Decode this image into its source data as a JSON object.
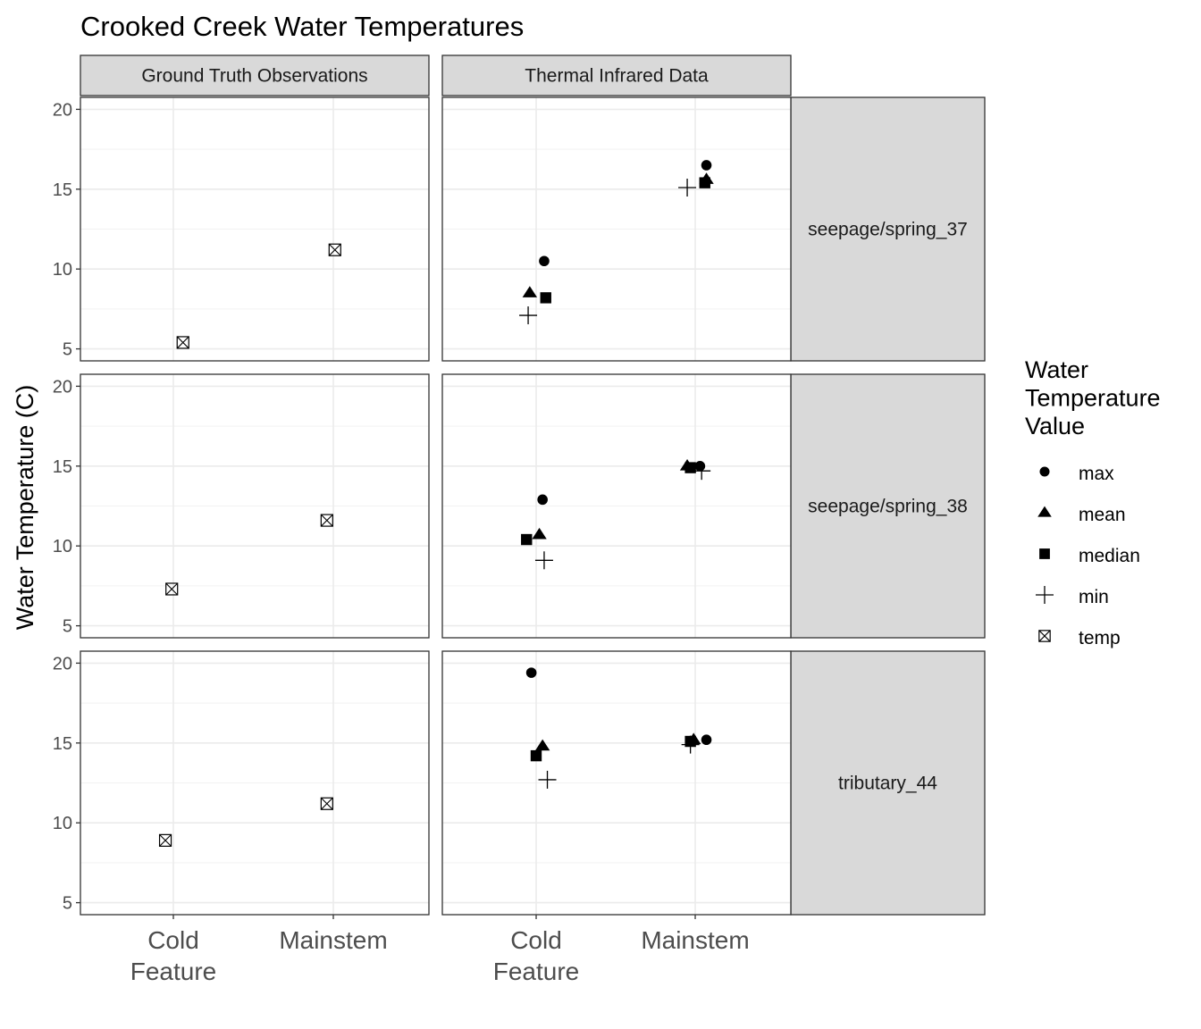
{
  "chart_data": {
    "type": "scatter",
    "title": "Crooked Creek Water Temperatures",
    "ylabel": "Water Temperature (C)",
    "xlabel": "",
    "categories": [
      "Cold\nFeature",
      "Mainstem"
    ],
    "ylim": [
      5,
      20
    ],
    "yticks": [
      5,
      10,
      15,
      20
    ],
    "grid": true,
    "legend": {
      "title": "Water\nTemperature\nValue",
      "position": "right",
      "entries": [
        {
          "key": "max",
          "label": "max",
          "shape": "circle"
        },
        {
          "key": "mean",
          "label": "mean",
          "shape": "triangle"
        },
        {
          "key": "median",
          "label": "median",
          "shape": "square"
        },
        {
          "key": "min",
          "label": "min",
          "shape": "plus"
        },
        {
          "key": "temp",
          "label": "temp",
          "shape": "square-cross"
        }
      ]
    },
    "columns": [
      "Ground Truth Observations",
      "Thermal Infrared Data"
    ],
    "rows": [
      "seepage/spring_37",
      "seepage/spring_38",
      "tributary_44"
    ],
    "panels": [
      {
        "row": 0,
        "col": 0,
        "points": [
          {
            "x": 0,
            "jitter": 0.06,
            "y": 5.4,
            "series": "temp"
          },
          {
            "x": 1,
            "jitter": 0.01,
            "y": 11.2,
            "series": "temp"
          }
        ]
      },
      {
        "row": 0,
        "col": 1,
        "points": [
          {
            "x": 0,
            "jitter": 0.05,
            "y": 10.5,
            "series": "max"
          },
          {
            "x": 0,
            "jitter": -0.04,
            "y": 8.5,
            "series": "mean"
          },
          {
            "x": 0,
            "jitter": 0.06,
            "y": 8.2,
            "series": "median"
          },
          {
            "x": 0,
            "jitter": -0.05,
            "y": 7.1,
            "series": "min"
          },
          {
            "x": 1,
            "jitter": 0.07,
            "y": 16.5,
            "series": "max"
          },
          {
            "x": 1,
            "jitter": 0.07,
            "y": 15.6,
            "series": "mean"
          },
          {
            "x": 1,
            "jitter": 0.06,
            "y": 15.4,
            "series": "median"
          },
          {
            "x": 1,
            "jitter": -0.05,
            "y": 15.1,
            "series": "min"
          }
        ]
      },
      {
        "row": 1,
        "col": 0,
        "points": [
          {
            "x": 0,
            "jitter": -0.01,
            "y": 7.3,
            "series": "temp"
          },
          {
            "x": 1,
            "jitter": -0.04,
            "y": 11.6,
            "series": "temp"
          }
        ]
      },
      {
        "row": 1,
        "col": 1,
        "points": [
          {
            "x": 0,
            "jitter": 0.04,
            "y": 12.9,
            "series": "max"
          },
          {
            "x": 0,
            "jitter": 0.02,
            "y": 10.7,
            "series": "mean"
          },
          {
            "x": 0,
            "jitter": -0.06,
            "y": 10.4,
            "series": "median"
          },
          {
            "x": 0,
            "jitter": 0.05,
            "y": 9.1,
            "series": "min"
          },
          {
            "x": 1,
            "jitter": 0.03,
            "y": 15.0,
            "series": "max"
          },
          {
            "x": 1,
            "jitter": -0.05,
            "y": 15.0,
            "series": "mean"
          },
          {
            "x": 1,
            "jitter": -0.03,
            "y": 14.9,
            "series": "median"
          },
          {
            "x": 1,
            "jitter": 0.04,
            "y": 14.7,
            "series": "min"
          }
        ]
      },
      {
        "row": 2,
        "col": 0,
        "points": [
          {
            "x": 0,
            "jitter": -0.05,
            "y": 8.9,
            "series": "temp"
          },
          {
            "x": 1,
            "jitter": -0.04,
            "y": 11.2,
            "series": "temp"
          }
        ]
      },
      {
        "row": 2,
        "col": 1,
        "points": [
          {
            "x": 0,
            "jitter": -0.03,
            "y": 19.4,
            "series": "max"
          },
          {
            "x": 0,
            "jitter": 0.04,
            "y": 14.8,
            "series": "mean"
          },
          {
            "x": 0,
            "jitter": 0.0,
            "y": 14.2,
            "series": "median"
          },
          {
            "x": 0,
            "jitter": 0.07,
            "y": 12.7,
            "series": "min"
          },
          {
            "x": 1,
            "jitter": 0.07,
            "y": 15.2,
            "series": "max"
          },
          {
            "x": 1,
            "jitter": -0.01,
            "y": 15.2,
            "series": "mean"
          },
          {
            "x": 1,
            "jitter": -0.03,
            "y": 15.1,
            "series": "median"
          },
          {
            "x": 1,
            "jitter": -0.03,
            "y": 14.9,
            "series": "min"
          }
        ]
      }
    ]
  }
}
